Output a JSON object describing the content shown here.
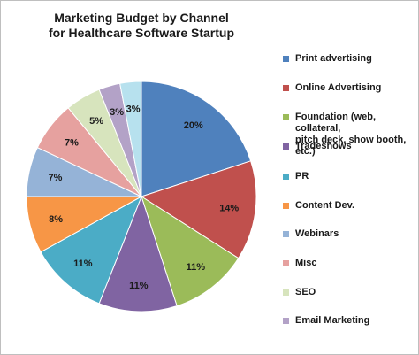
{
  "chart_data": {
    "type": "pie",
    "title": "Marketing Budget by Channel\nfor Healthcare Software Startup",
    "title_lines": [
      "Marketing Budget by Channel",
      "for Healthcare Software Startup"
    ],
    "legend_position": "right",
    "unit": "%",
    "slices": [
      {
        "label": "Print advertising",
        "value": 20,
        "data_label": "20%",
        "color": "#4f81bd"
      },
      {
        "label": "Online Advertising",
        "value": 14,
        "data_label": "14%",
        "color": "#c0504d"
      },
      {
        "label": "Foundation (web, collateral,\npitch deck, show booth, etc.)",
        "value": 11,
        "data_label": "11%",
        "color": "#9bbb59"
      },
      {
        "label": "Tradeshows",
        "value": 11,
        "data_label": "11%",
        "color": "#8064a2"
      },
      {
        "label": "PR",
        "value": 11,
        "data_label": "11%",
        "color": "#4bacc6"
      },
      {
        "label": "Content Dev.",
        "value": 8,
        "data_label": "8%",
        "color": "#f79646"
      },
      {
        "label": "Webinars",
        "value": 7,
        "data_label": "7%",
        "color": "#95b3d7"
      },
      {
        "label": "Misc",
        "value": 7,
        "data_label": "7%",
        "color": "#e6a19f"
      },
      {
        "label": "SEO",
        "value": 5,
        "data_label": "5%",
        "color": "#d7e4bd"
      },
      {
        "label": "Email Marketing",
        "value": 3,
        "data_label": "3%",
        "color": "#b3a2c7"
      },
      {
        "label": "",
        "value": 3,
        "data_label": "3%",
        "color": "#b7e1ee"
      }
    ]
  }
}
